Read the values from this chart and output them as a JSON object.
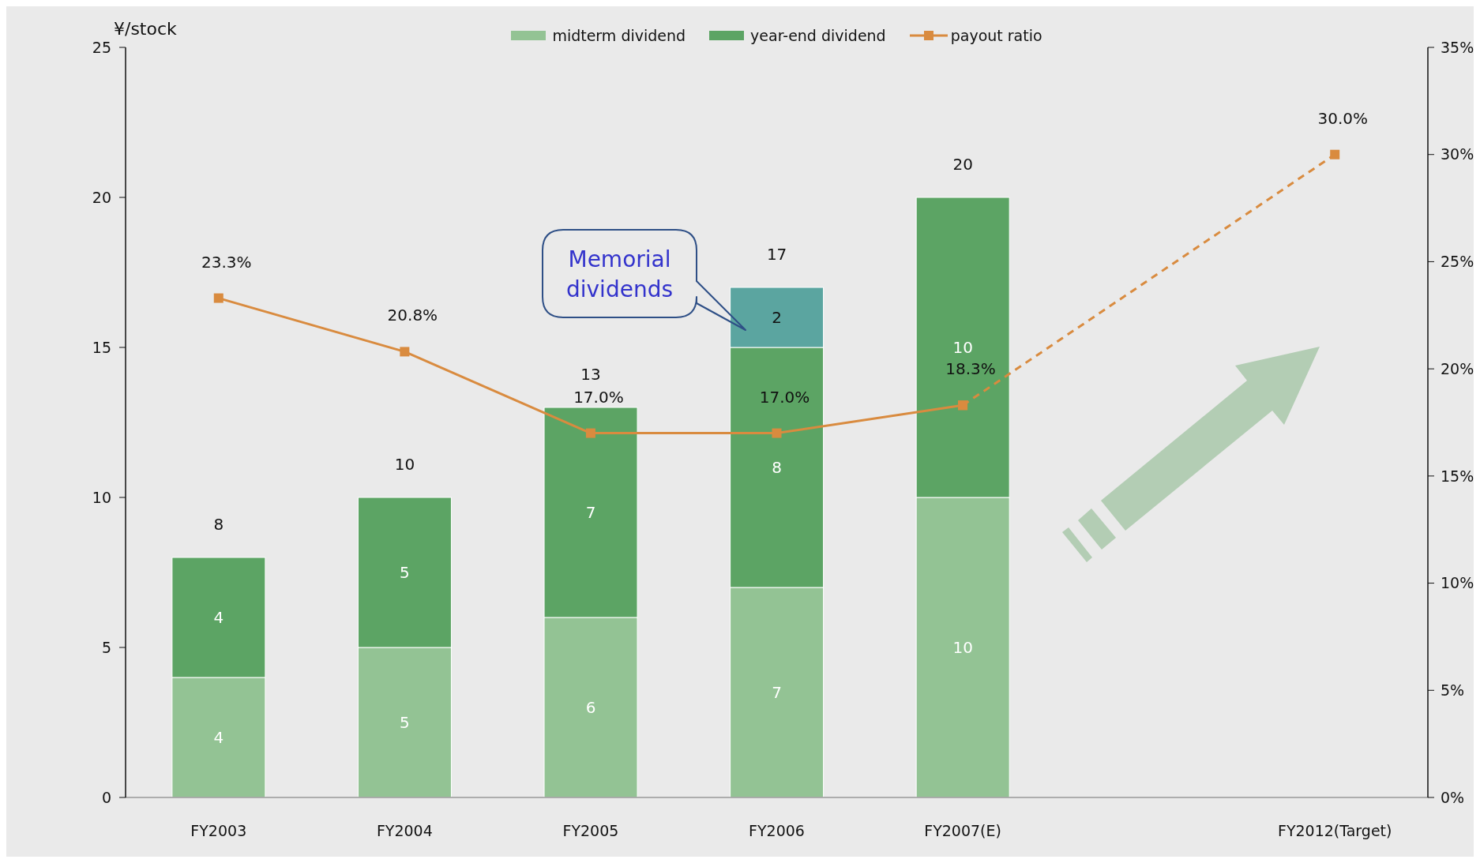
{
  "chart_data": {
    "type": "bar",
    "stacked": true,
    "categories": [
      "FY2003",
      "FY2004",
      "FY2005",
      "FY2006",
      "FY2007(E)",
      null,
      "FY2012(Target)"
    ],
    "ylabel": "¥/stock",
    "ylim": [
      0,
      25
    ],
    "yticks": [
      0,
      5,
      10,
      15,
      20,
      25
    ],
    "y2lim": [
      0,
      35
    ],
    "y2ticks": [
      {
        "value": 0,
        "label": "0%"
      },
      {
        "value": 5,
        "label": "5%"
      },
      {
        "value": 10,
        "label": "10%"
      },
      {
        "value": 15,
        "label": "15%"
      },
      {
        "value": 20,
        "label": "20%"
      },
      {
        "value": 25,
        "label": "25%"
      },
      {
        "value": 30,
        "label": "30%"
      },
      {
        "value": 35,
        "label": "35%"
      }
    ],
    "series": [
      {
        "name": "midterm dividend",
        "color": "#93c394",
        "values": [
          4,
          5,
          6,
          7,
          10,
          null,
          null
        ],
        "value_labels": [
          "4",
          "5",
          "6",
          "7",
          "10",
          null,
          null
        ]
      },
      {
        "name": "year-end dividend",
        "color": "#5ca464",
        "values": [
          4,
          5,
          7,
          8,
          10,
          null,
          null
        ],
        "value_labels": [
          "4",
          "5",
          "7",
          "8",
          "10",
          null,
          null
        ]
      },
      {
        "color": "#5ba5a0",
        "values": [
          null,
          null,
          null,
          2,
          null,
          null,
          null
        ],
        "value_labels": [
          null,
          null,
          null,
          "2",
          null,
          null,
          null
        ]
      },
      {
        "name": "payout ratio",
        "type": "line",
        "axis": "y2",
        "color": "#d98b3f",
        "marker": "square",
        "line_style": "solid",
        "values": [
          23.3,
          20.8,
          17.0,
          17.0,
          18.3,
          null,
          null
        ],
        "value_labels": [
          "23.3%",
          "20.8%",
          "17.0%",
          "17.0%",
          "18.3%",
          null,
          null
        ]
      },
      {
        "type": "line",
        "axis": "y2",
        "color": "#d98b3f",
        "marker": "square",
        "line_style": "dashed",
        "values": [
          null,
          null,
          null,
          null,
          18.3,
          null,
          30.0
        ],
        "value_labels": [
          null,
          null,
          null,
          null,
          null,
          null,
          "30.0%"
        ]
      }
    ],
    "totals": [
      "8",
      "10",
      "13",
      "17",
      "20",
      null,
      null
    ],
    "annotations": [
      "Memorial dividends"
    ],
    "legend": "top"
  }
}
